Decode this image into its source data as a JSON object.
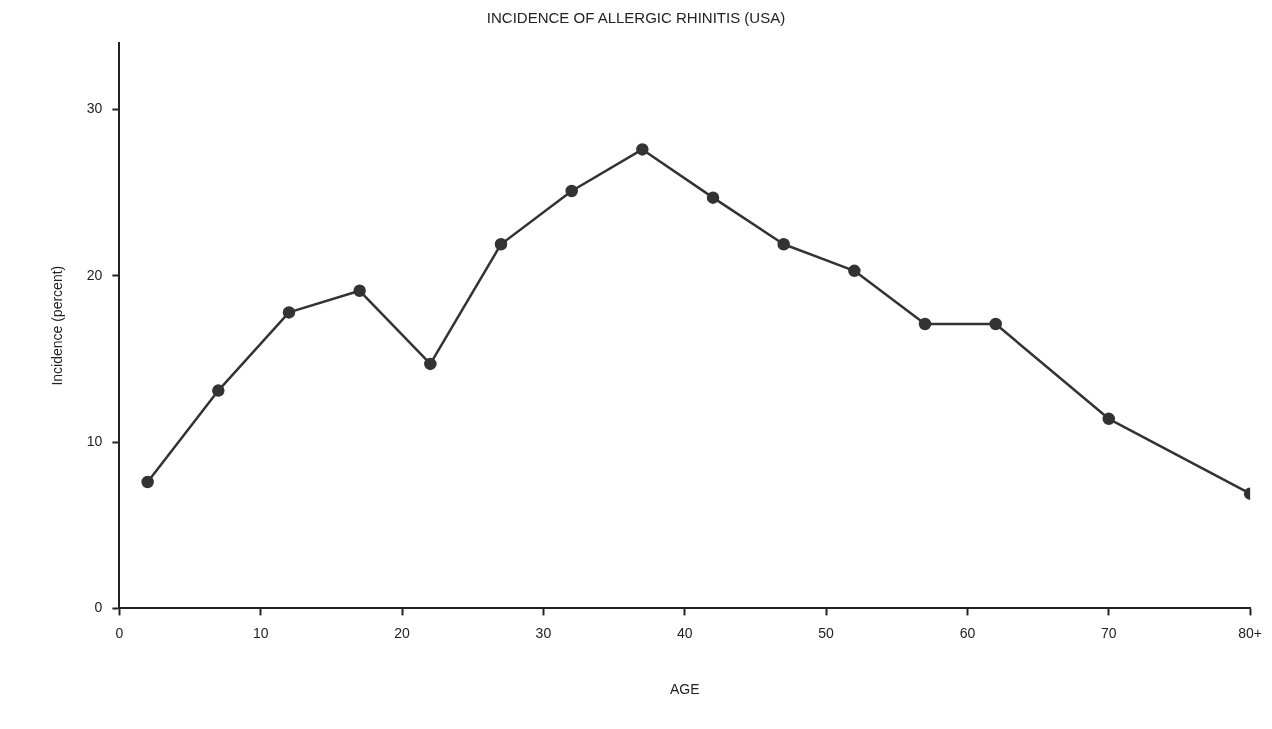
{
  "chart_data": {
    "type": "line",
    "title": "INCIDENCE OF ALLERGIC RHINITIS (USA)",
    "xlabel": "AGE",
    "ylabel": "Incidence (percent)",
    "x": [
      2,
      7,
      12,
      17,
      22,
      27,
      32,
      37,
      42,
      47,
      52,
      57,
      62,
      70,
      80
    ],
    "series": [
      {
        "color": "#333333",
        "values": [
          7.6,
          13.1,
          17.8,
          19.1,
          14.7,
          21.9,
          25.1,
          27.6,
          24.7,
          21.9,
          20.3,
          17.1,
          17.1,
          11.4,
          6.9
        ]
      }
    ],
    "xlim": [
      0,
      80
    ],
    "xticks": [
      0,
      10,
      20,
      30,
      40,
      50,
      60,
      70,
      {
        "value": 80,
        "label": "80+"
      }
    ],
    "ylim": [
      0,
      34
    ],
    "yticks": [
      0,
      10,
      20,
      30
    ],
    "grid": false,
    "legend": false,
    "marker": "circle",
    "line_style": "solid"
  }
}
